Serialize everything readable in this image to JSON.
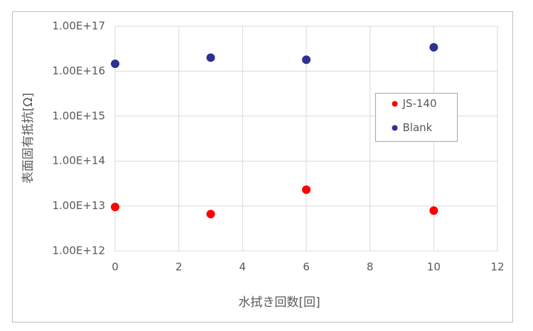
{
  "chart_data": {
    "type": "scatter",
    "x_label": "水拭き回数[回]",
    "y_label": "表面固有抵抗[Ω]",
    "series": [
      {
        "name": "JS-140",
        "color": "#ff0000",
        "x": [
          0,
          3,
          6,
          10
        ],
        "values": [
          9500000000000.0,
          6600000000000.0,
          23000000000000.0,
          7900000000000.0
        ]
      },
      {
        "name": "Blank",
        "color": "#2e3192",
        "x": [
          0,
          3,
          6,
          10
        ],
        "values": [
          1.46e+16,
          2e+16,
          1.8e+16,
          3.4e+16
        ]
      }
    ],
    "xlim": [
      0,
      12
    ],
    "xticks": [
      0,
      2,
      4,
      6,
      8,
      10,
      12
    ],
    "ylim": [
      1000000000000.0,
      1e+17
    ],
    "yticks": [
      {
        "value": 1000000000000.0,
        "label": "1.00E+12"
      },
      {
        "value": 10000000000000.0,
        "label": "1.00E+13"
      },
      {
        "value": 100000000000000.0,
        "label": "1.00E+14"
      },
      {
        "value": 1000000000000000.0,
        "label": "1.00E+15"
      },
      {
        "value": 1e+16,
        "label": "1.00E+16"
      },
      {
        "value": 1e+17,
        "label": "1.00E+17"
      }
    ],
    "y_scale": "log",
    "grid": true,
    "legend_position": "right"
  }
}
